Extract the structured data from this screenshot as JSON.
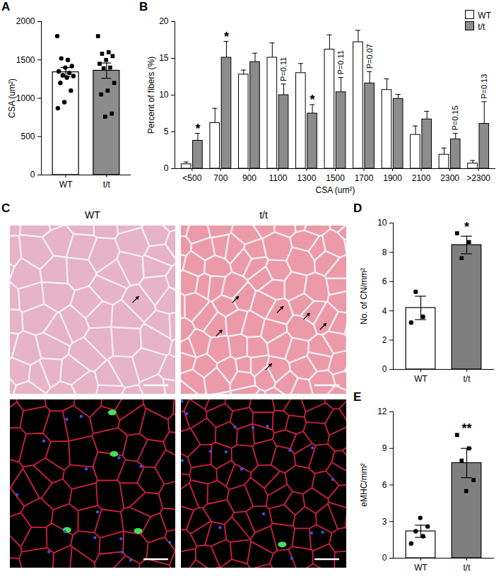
{
  "chart_data": [
    {
      "type": "bar",
      "title": "A",
      "y_label": "CSA (um²)",
      "ylim": [
        0,
        2000
      ],
      "yticks": [
        0,
        500,
        1000,
        1500,
        2000
      ],
      "series": [
        {
          "name": "WT",
          "color": "#ffffff",
          "marker": "circle",
          "values": [
            1340
          ],
          "errors": [
            60
          ],
          "points": [
            1810,
            1500,
            1520,
            1420,
            1400,
            1350,
            1330,
            1300,
            1290,
            1270,
            1200,
            1100,
            950,
            870
          ]
        },
        {
          "name": "t/t",
          "color": "#8c8c8c",
          "marker": "square",
          "values": [
            1360
          ],
          "errors": [
            100
          ],
          "points": [
            1810,
            1600,
            1580,
            1550,
            1500,
            1450,
            1400,
            1390,
            1200,
            1100,
            1050,
            800,
            760
          ]
        }
      ]
    },
    {
      "type": "bar",
      "title": "B",
      "x_label": "CSA (um²)",
      "y_label": "Percent of fibers (%)",
      "categories": [
        "<500",
        "700",
        "900",
        "1100",
        "1300",
        "1500",
        "1700",
        "1900",
        "2100",
        "2300",
        ">2300"
      ],
      "ylim": [
        0,
        20
      ],
      "yticks": [
        0,
        5,
        10,
        15,
        20
      ],
      "legend": "top-right",
      "series": [
        {
          "name": "WT",
          "color": "#ffffff",
          "values": [
            0.6,
            6.2,
            12.8,
            15.1,
            13.0,
            16.2,
            17.2,
            10.7,
            4.6,
            1.9,
            0.7
          ],
          "errors": [
            0.3,
            2.0,
            0.6,
            2.0,
            1.3,
            2.0,
            1.6,
            1.5,
            1.2,
            0.9,
            0.4
          ]
        },
        {
          "name": "t/t",
          "color": "#8c8c8c",
          "values": [
            3.8,
            15.1,
            14.5,
            10.0,
            7.5,
            10.4,
            11.6,
            9.5,
            6.7,
            4.0,
            6.1
          ],
          "errors": [
            1.0,
            2.2,
            1.2,
            1.5,
            1.2,
            2.0,
            1.6,
            0.6,
            1.1,
            0.8,
            3.0
          ]
        }
      ],
      "annotations": [
        {
          "category": "<500",
          "text": "*"
        },
        {
          "category": "700",
          "text": "*"
        },
        {
          "category": "1100",
          "text": "P=0.11"
        },
        {
          "category": "1300",
          "text": "*"
        },
        {
          "category": "1500",
          "text": "P=0.11"
        },
        {
          "category": "1700",
          "text": "P=0.07"
        },
        {
          "category": "2300",
          "text": "P=0.15"
        },
        {
          "category": ">2300",
          "text": "P=0.13"
        }
      ]
    },
    {
      "type": "image",
      "title": "C",
      "panels": [
        {
          "label": "WT"
        },
        {
          "label": "t/t"
        }
      ]
    },
    {
      "type": "bar",
      "title": "D",
      "y_label": "No. of CN/mm²",
      "ylim": [
        0,
        10
      ],
      "yticks": [
        0,
        2,
        4,
        6,
        8,
        10
      ],
      "series": [
        {
          "name": "WT",
          "color": "#ffffff",
          "marker": "circle",
          "values": [
            4.2
          ],
          "errors": [
            0.8
          ],
          "points": [
            3.2,
            3.6,
            5.3
          ]
        },
        {
          "name": "t/t",
          "color": "#7f7f7f",
          "marker": "square",
          "values": [
            8.5
          ],
          "errors": [
            0.6
          ],
          "points": [
            9.3,
            8.7,
            7.6
          ]
        }
      ],
      "annotations": [
        {
          "category": "t/t",
          "text": "*"
        }
      ]
    },
    {
      "type": "bar",
      "title": "E",
      "y_label": "eMHC/mm²",
      "ylim": [
        0,
        12
      ],
      "yticks": [
        0,
        3,
        6,
        9,
        12
      ],
      "series": [
        {
          "name": "WT",
          "color": "#ffffff",
          "marker": "circle",
          "values": [
            2.2
          ],
          "errors": [
            0.5
          ],
          "points": [
            1.2,
            1.8,
            2.2,
            2.6,
            3.3
          ]
        },
        {
          "name": "t/t",
          "color": "#7f7f7f",
          "marker": "square",
          "values": [
            7.8
          ],
          "errors": [
            1.2
          ],
          "points": [
            10.1,
            9.0,
            8.0,
            6.4,
            5.5
          ]
        }
      ],
      "annotations": [
        {
          "category": "t/t",
          "text": "**"
        }
      ]
    }
  ]
}
